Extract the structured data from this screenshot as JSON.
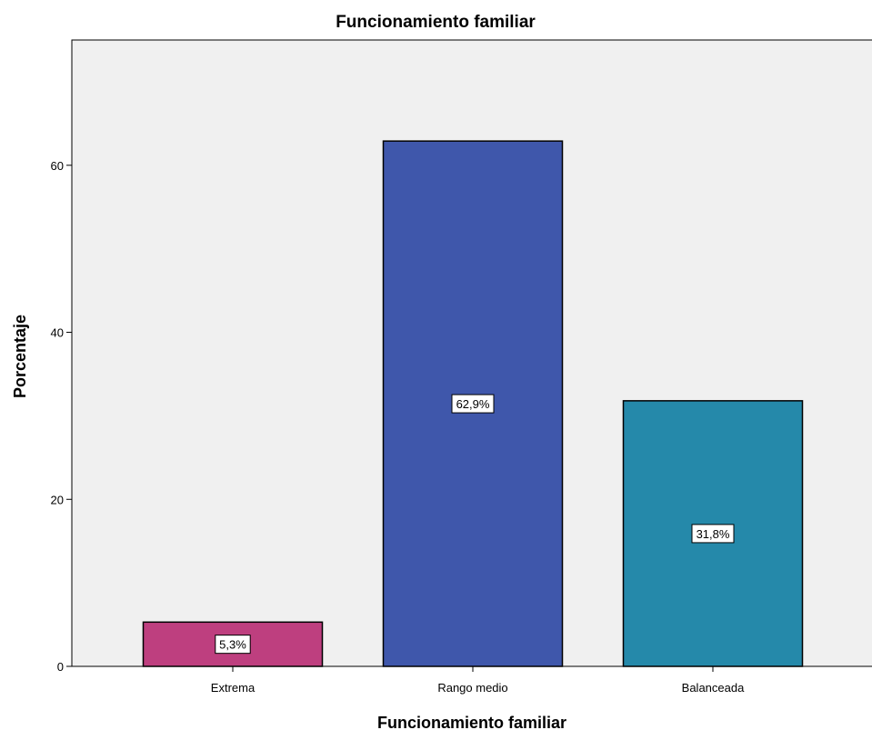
{
  "chart_data": {
    "type": "bar",
    "title": "Funcionamiento familiar",
    "xlabel": "Funcionamiento familiar",
    "ylabel": "Porcentaje",
    "categories": [
      "Extrema",
      "Rango medio",
      "Balanceada"
    ],
    "values": [
      5.3,
      62.9,
      31.8
    ],
    "data_labels": [
      "5,3%",
      "62,9%",
      "31,8%"
    ],
    "colors": [
      "#be3f7f",
      "#3f57ab",
      "#2589aa"
    ],
    "ylim": [
      0,
      75
    ],
    "yticks": [
      0,
      20,
      40,
      60
    ],
    "ytick_labels": [
      "0",
      "20",
      "40",
      "60"
    ],
    "grid": false,
    "plot_background": "#f0f0f0"
  }
}
